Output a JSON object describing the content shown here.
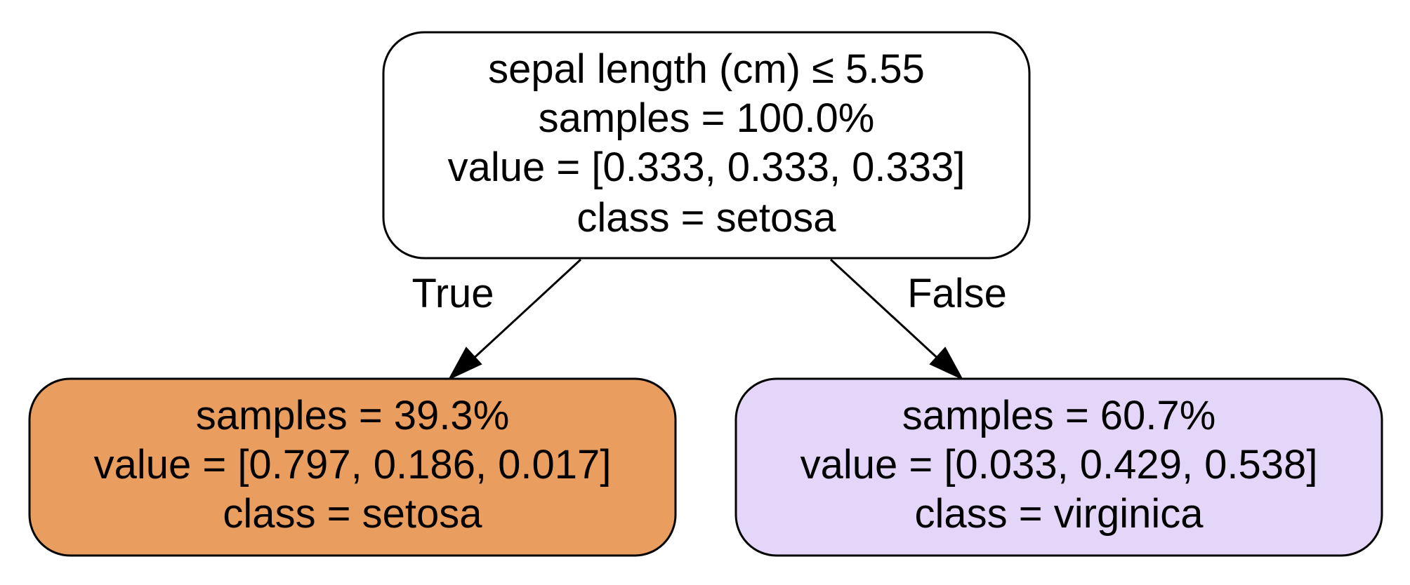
{
  "tree": {
    "root": {
      "lines": [
        "sepal length (cm) ≤ 5.55",
        "samples = 100.0%",
        "value = [0.333, 0.333, 0.333]",
        "class = setosa"
      ],
      "fill": "#ffffff"
    },
    "left": {
      "lines": [
        "samples = 39.3%",
        "value = [0.797, 0.186, 0.017]",
        "class = setosa"
      ],
      "fill": "#e99d5f"
    },
    "right": {
      "lines": [
        "samples = 60.7%",
        "value = [0.033, 0.429, 0.538]",
        "class = virginica"
      ],
      "fill": "#e3d6f8"
    },
    "edges": {
      "true_label": "True",
      "false_label": "False"
    },
    "stroke_color": "#000000"
  }
}
